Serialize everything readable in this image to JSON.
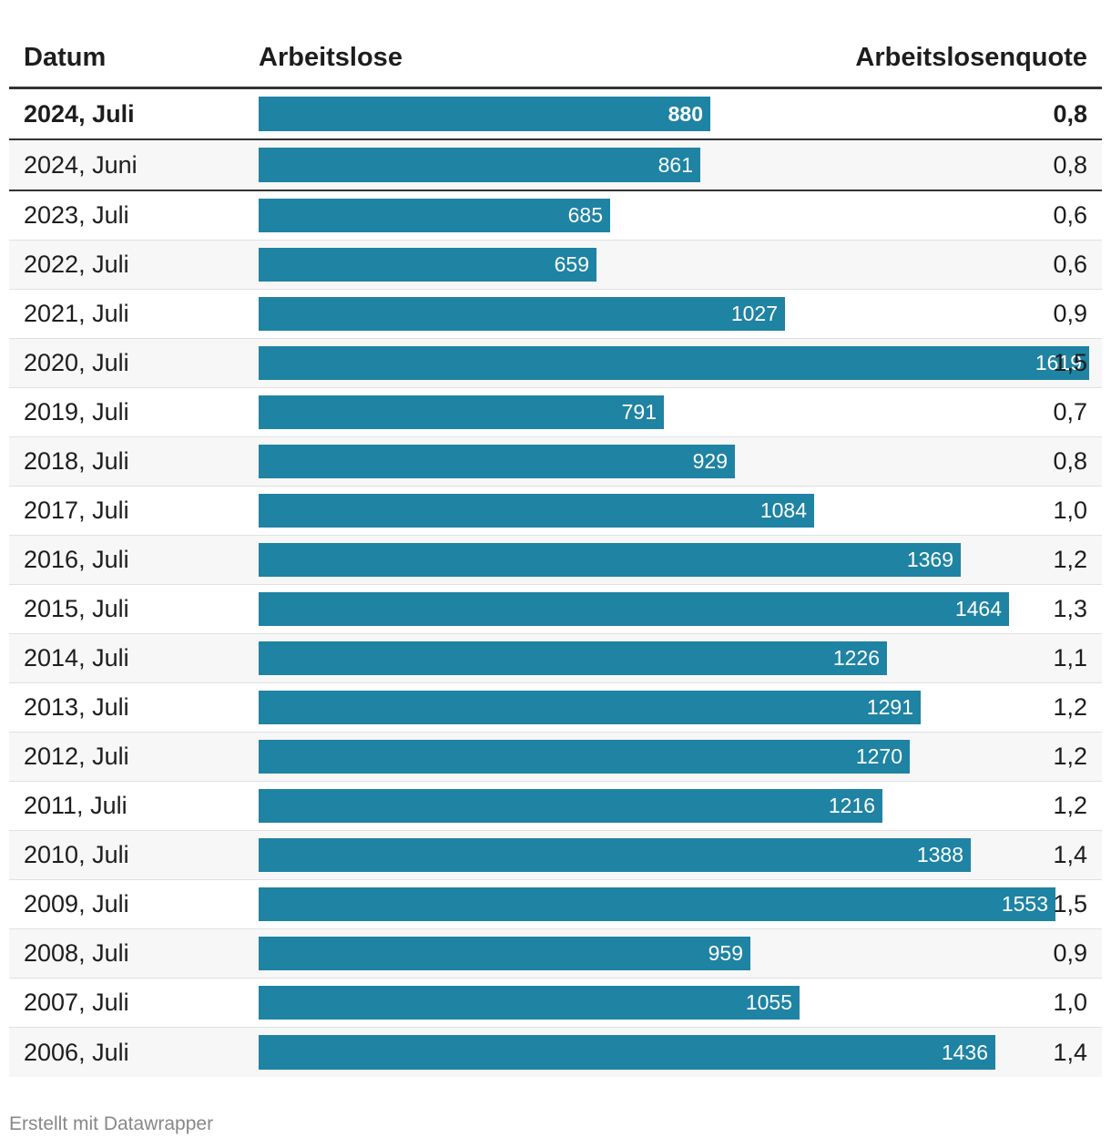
{
  "header": {
    "date": "Datum",
    "unemployed": "Arbeitslose",
    "rate": "Arbeitslosenquote"
  },
  "footer": "Erstellt mit Datawrapper",
  "colors": {
    "bar": "#1f83a3",
    "divider": "#333333"
  },
  "chart_data": {
    "type": "table",
    "columns": [
      "Datum",
      "Arbeitslose",
      "Arbeitslosenquote"
    ],
    "bar_column": "Arbeitslose",
    "bar_max": 1900,
    "rows": [
      {
        "date": "2024, Juli",
        "value": 880,
        "label": "880",
        "rate": "0,8",
        "bold": true
      },
      {
        "date": "2024, Juni",
        "value": 861,
        "label": "861",
        "rate": "0,8"
      },
      {
        "date": "2023, Juli",
        "value": 685,
        "label": "685",
        "rate": "0,6"
      },
      {
        "date": "2022, Juli",
        "value": 659,
        "label": "659",
        "rate": "0,6"
      },
      {
        "date": "2021, Juli",
        "value": 1027,
        "label": "1027",
        "rate": "0,9"
      },
      {
        "date": "2020, Juli",
        "value": 1619,
        "label": "1619",
        "rate": "1,5"
      },
      {
        "date": "2019, Juli",
        "value": 791,
        "label": "791",
        "rate": "0,7"
      },
      {
        "date": "2018, Juli",
        "value": 929,
        "label": "929",
        "rate": "0,8"
      },
      {
        "date": "2017, Juli",
        "value": 1084,
        "label": "1084",
        "rate": "1,0"
      },
      {
        "date": "2016, Juli",
        "value": 1369,
        "label": "1369",
        "rate": "1,2"
      },
      {
        "date": "2015, Juli",
        "value": 1464,
        "label": "1464",
        "rate": "1,3"
      },
      {
        "date": "2014, Juli",
        "value": 1226,
        "label": "1226",
        "rate": "1,1"
      },
      {
        "date": "2013, Juli",
        "value": 1291,
        "label": "1291",
        "rate": "1,2"
      },
      {
        "date": "2012, Juli",
        "value": 1270,
        "label": "1270",
        "rate": "1,2"
      },
      {
        "date": "2011, Juli",
        "value": 1216,
        "label": "1216",
        "rate": "1,2"
      },
      {
        "date": "2010, Juli",
        "value": 1388,
        "label": "1388",
        "rate": "1,4"
      },
      {
        "date": "2009, Juli",
        "value": 1553,
        "label": "1553",
        "rate": "1,5"
      },
      {
        "date": "2008, Juli",
        "value": 959,
        "label": "959",
        "rate": "0,9"
      },
      {
        "date": "2007, Juli",
        "value": 1055,
        "label": "1055",
        "rate": "1,0"
      },
      {
        "date": "2006, Juli",
        "value": 1436,
        "label": "1436",
        "rate": "1,4"
      }
    ]
  }
}
